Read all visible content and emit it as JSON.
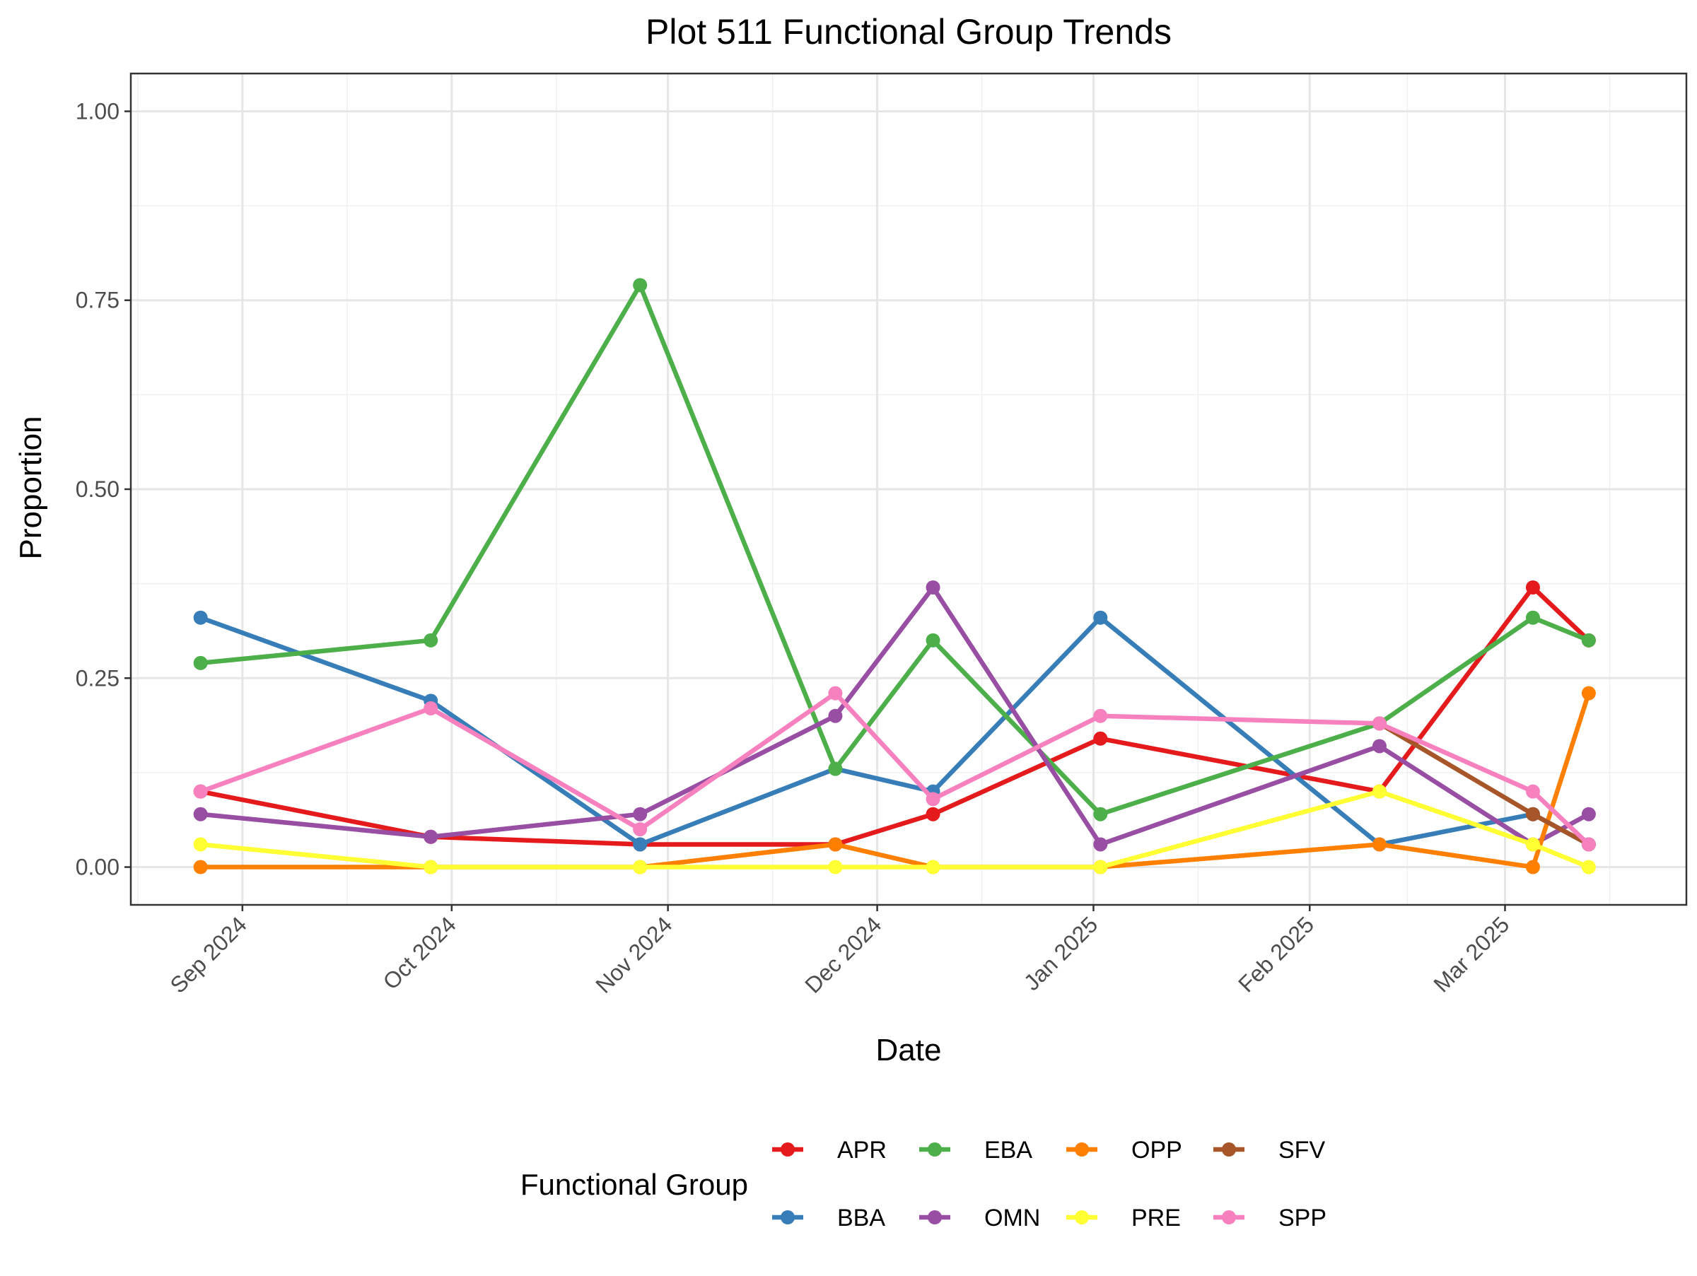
{
  "chart_data": {
    "type": "line",
    "title": "Plot 511 Functional Group Trends",
    "xlabel": "Date",
    "ylabel": "Proportion",
    "ylim": [
      -0.05,
      1.05
    ],
    "xlim": [
      "2024-08-16",
      "2025-03-27"
    ],
    "y_ticks": [
      {
        "value": 0.0,
        "label": "0.00"
      },
      {
        "value": 0.25,
        "label": "0.25"
      },
      {
        "value": 0.5,
        "label": "0.50"
      },
      {
        "value": 0.75,
        "label": "0.75"
      },
      {
        "value": 1.0,
        "label": "1.00"
      }
    ],
    "x_ticks": [
      {
        "date": "2024-09-01",
        "label": "Sep 2024"
      },
      {
        "date": "2024-10-01",
        "label": "Oct 2024"
      },
      {
        "date": "2024-11-01",
        "label": "Nov 2024"
      },
      {
        "date": "2024-12-01",
        "label": "Dec 2024"
      },
      {
        "date": "2025-01-01",
        "label": "Jan 2025"
      },
      {
        "date": "2025-02-01",
        "label": "Feb 2025"
      },
      {
        "date": "2025-03-01",
        "label": "Mar 2025"
      }
    ],
    "grid": true,
    "legend": {
      "title": "Functional Group",
      "position": "bottom"
    },
    "x": [
      "2024-08-26",
      "2024-09-28",
      "2024-10-28",
      "2024-11-25",
      "2024-12-09",
      "2025-01-02",
      "2025-02-11",
      "2025-03-05",
      "2025-03-13"
    ],
    "series": [
      {
        "name": "APR",
        "color": "#E41A1C",
        "values": [
          0.1,
          0.04,
          0.03,
          0.03,
          0.07,
          0.17,
          0.1,
          0.37,
          0.3
        ]
      },
      {
        "name": "BBA",
        "color": "#377EB8",
        "values": [
          0.33,
          0.22,
          0.03,
          0.13,
          0.1,
          0.33,
          0.03,
          0.07,
          0.03
        ]
      },
      {
        "name": "EBA",
        "color": "#4DAF4A",
        "values": [
          0.27,
          0.3,
          0.77,
          0.13,
          0.3,
          0.07,
          0.19,
          0.33,
          0.3
        ]
      },
      {
        "name": "OMN",
        "color": "#984EA3",
        "values": [
          0.07,
          0.04,
          0.07,
          0.2,
          0.37,
          0.03,
          0.16,
          0.03,
          0.07
        ]
      },
      {
        "name": "OPP",
        "color": "#FF7F00",
        "values": [
          0.0,
          0.0,
          0.0,
          0.03,
          0.0,
          0.0,
          0.03,
          0.0,
          0.23
        ]
      },
      {
        "name": "PRE",
        "color": "#FFFF33",
        "values": [
          0.03,
          0.0,
          0.0,
          0.0,
          0.0,
          0.0,
          0.1,
          0.03,
          0.0
        ]
      },
      {
        "name": "SFV",
        "color": "#A65628",
        "values": [
          null,
          null,
          null,
          null,
          null,
          null,
          0.19,
          0.07,
          0.03
        ]
      },
      {
        "name": "SPP",
        "color": "#F781BF",
        "values": [
          0.1,
          0.21,
          0.05,
          0.23,
          0.09,
          0.2,
          0.19,
          0.1,
          0.03
        ]
      }
    ]
  }
}
